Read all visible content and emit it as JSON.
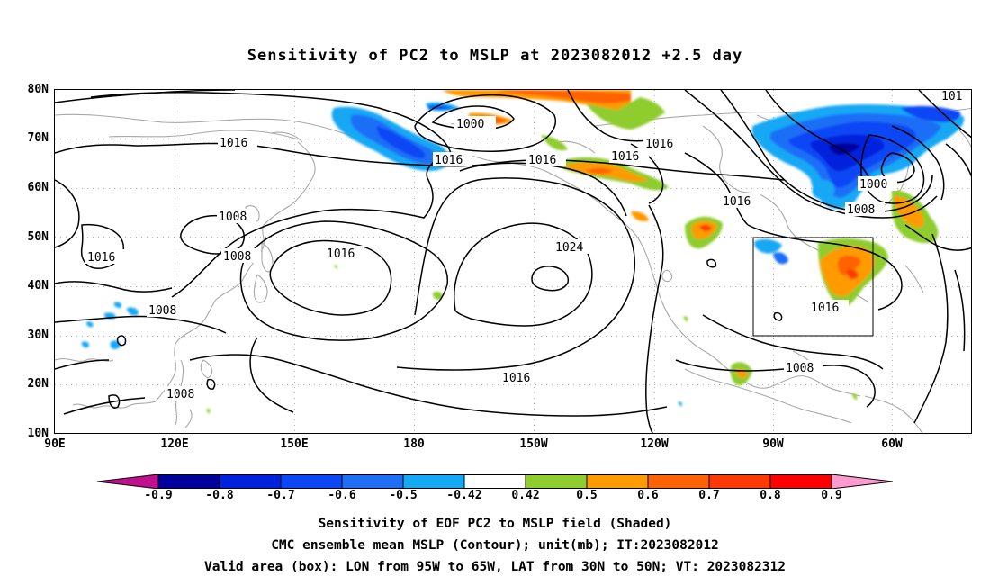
{
  "title": "Sensitivity of PC2 to MSLP at 2023082012 +2.5 day",
  "lat_labels": [
    "80N",
    "70N",
    "60N",
    "50N",
    "40N",
    "30N",
    "20N",
    "10N"
  ],
  "lon_labels": [
    "90E",
    "120E",
    "150E",
    "180",
    "150W",
    "120W",
    "90W",
    "60W"
  ],
  "contour_labels": {
    "c1000a": "1000",
    "c1016a": "1016",
    "c1016b": "1016",
    "c1016c": "1016",
    "c1016d": "1016",
    "c1016e": "1016",
    "c1016f": "1016",
    "c1016g": "1016",
    "c1016h": "1016",
    "c1016i": "1016",
    "c1016j": "1016",
    "c1024": "1024",
    "c1008a": "1008",
    "c1008b": "1008",
    "c1008c": "1008",
    "c1008d": "1008",
    "c1008e": "1008",
    "c1008f": "1008",
    "c1000b": "1000",
    "c101": "101"
  },
  "colorbar": {
    "labels": [
      "-0.9",
      "-0.8",
      "-0.7",
      "-0.6",
      "-0.5",
      "-0.42",
      "0.42",
      "0.5",
      "0.6",
      "0.7",
      "0.8",
      "0.9"
    ],
    "colors": [
      "#00009f",
      "#0022dd",
      "#0c47f5",
      "#1f6ef7",
      "#15a8f5",
      "#ffffff",
      "#8fcc2e",
      "#ff9a00",
      "#ff6200",
      "#ff3a00",
      "#ff0000"
    ],
    "low_end_color": "#c0108f",
    "high_end_color": "#ff9ad0"
  },
  "footer": {
    "line1": "Sensitivity of EOF PC2 to MSLP field (Shaded)",
    "line2": "CMC ensemble mean MSLP (Contour); unit(mb); IT:2023082012",
    "line3": "Valid area (box): LON from 95W to 65W, LAT from 30N to 50N; VT: 2023082312"
  }
}
